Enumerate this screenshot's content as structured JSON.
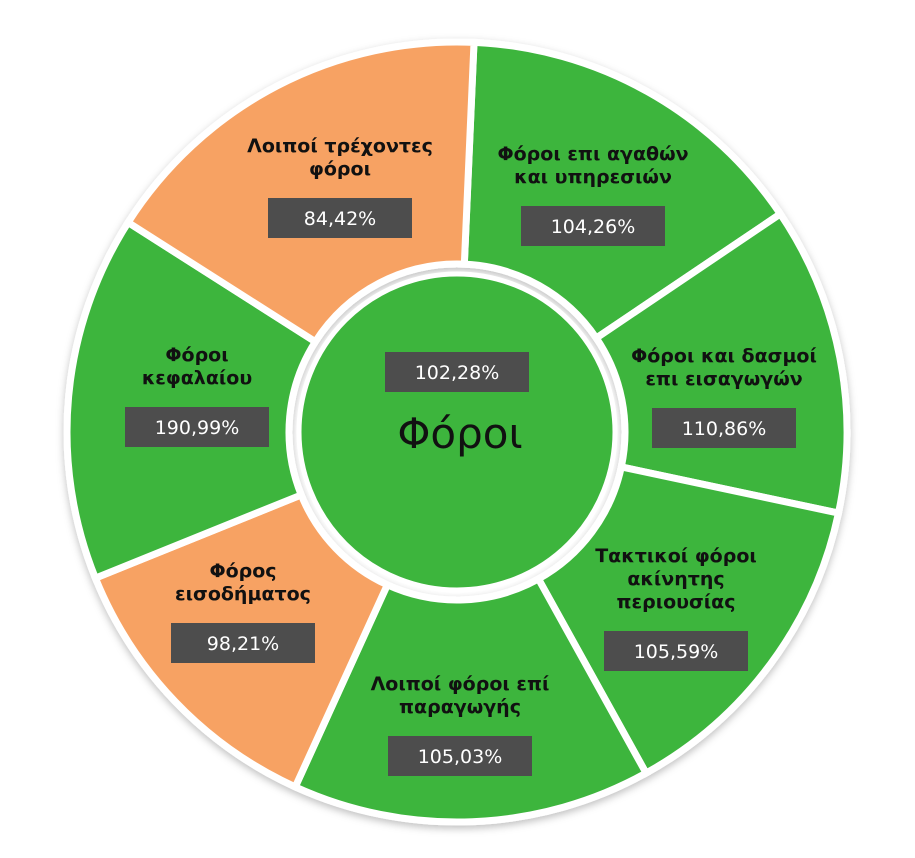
{
  "chart_data": {
    "type": "pie",
    "title": "Φόροι",
    "center_value": "102,28%",
    "colors": {
      "above_100": "#3db53d",
      "below_100": "#f7a263",
      "value_box": "#4d4d4d"
    },
    "segments": [
      {
        "label": "Φόροι επι αγαθών και υπηρεσιών",
        "lines": [
          "Φόροι επι αγαθών",
          "και υπηρεσιών"
        ],
        "value": 104.26,
        "display": "104,26%",
        "color": "#3db53d"
      },
      {
        "label": "Φόροι και δασμοί επι εισαγωγών",
        "lines": [
          "Φόροι και δασμοί",
          "επι εισαγωγών"
        ],
        "value": 110.86,
        "display": "110,86%",
        "color": "#3db53d"
      },
      {
        "label": "Τακτικοί φόροι ακίνητης περιουσίας",
        "lines": [
          "Τακτικοί φόροι",
          "ακίνητης",
          "περιουσίας"
        ],
        "value": 105.59,
        "display": "105,59%",
        "color": "#3db53d"
      },
      {
        "label": "Λοιποί φόροι επί παραγωγής",
        "lines": [
          "Λοιποί φόροι επί",
          "παραγωγής"
        ],
        "value": 105.03,
        "display": "105,03%",
        "color": "#3db53d"
      },
      {
        "label": "Φόρος εισοδήματος",
        "lines": [
          "Φόρος",
          "εισοδήματος"
        ],
        "value": 98.21,
        "display": "98,21%",
        "color": "#f7a263"
      },
      {
        "label": "Φόροι κεφαλαίου",
        "lines": [
          "Φόροι",
          "κεφαλαίου"
        ],
        "value": 190.99,
        "display": "190,99%",
        "color": "#3db53d"
      },
      {
        "label": "Λοιποί τρέχοντες φόροι",
        "lines": [
          "Λοιποί τρέχοντες",
          "φόροι"
        ],
        "value": 84.42,
        "display": "84,42%",
        "color": "#f7a263"
      }
    ]
  }
}
